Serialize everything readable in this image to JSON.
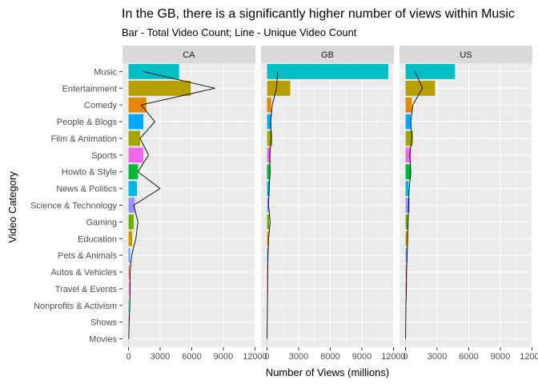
{
  "chart_data": {
    "type": "bar",
    "title": "In the GB, there is a significantly higher number of views within Music",
    "subtitle": "Bar - Total Video Count; Line - Unique Video Count",
    "xlabel": "Number of Views (millions)",
    "ylabel": "Video Category",
    "xlim": [
      0,
      12000
    ],
    "xticks": [
      0,
      3000,
      6000,
      9000,
      12000
    ],
    "xtick_labels": [
      "0",
      "3000",
      "6000",
      "9000",
      "12000"
    ],
    "grid": true,
    "legend": "none",
    "categories": [
      "Music",
      "Entertainment",
      "Comedy",
      "People & Blogs",
      "Film & Animation",
      "Sports",
      "Howto & Style",
      "News & Politics",
      "Science & Technology",
      "Gaming",
      "Education",
      "Pets & Animals",
      "Autos & Vehicles",
      "Travel & Events",
      "Nonprofits & Activism",
      "Shows",
      "Movies"
    ],
    "colors": {
      "Music": "#00BFC4",
      "Entertainment": "#B79F00",
      "Comedy": "#E58700",
      "People & Blogs": "#00A9FF",
      "Film & Animation": "#A3A500",
      "Sports": "#EF67EB",
      "Howto & Style": "#00BA38",
      "News & Politics": "#00B8E7",
      "Science & Technology": "#9590FF",
      "Gaming": "#6BB100",
      "Education": "#C99800",
      "Pets & Animals": "#619CFF",
      "Autos & Vehicles": "#F8766D",
      "Travel & Events": "#FF61C3",
      "Nonprofits & Activism": "#00C0AF",
      "Shows": "#C77CFF",
      "Movies": "#F8766D"
    },
    "panel_bg": "#EBEBEB",
    "strip_bg": "#D9D9D9",
    "panels": [
      {
        "name": "CA",
        "values": [
          4800,
          5900,
          1700,
          1400,
          1100,
          1400,
          900,
          800,
          600,
          500,
          350,
          150,
          100,
          80,
          40,
          20,
          10
        ],
        "line": [
          1400,
          8200,
          1200,
          2500,
          1100,
          1900,
          900,
          3000,
          500,
          900,
          700,
          300,
          150,
          150,
          120,
          60,
          20
        ]
      },
      {
        "name": "GB",
        "values": [
          11500,
          2200,
          400,
          400,
          500,
          350,
          250,
          250,
          150,
          200,
          150,
          100,
          80,
          60,
          40,
          20,
          10
        ],
        "line": [
          1000,
          900,
          500,
          350,
          400,
          250,
          300,
          200,
          150,
          300,
          150,
          100,
          60,
          60,
          40,
          20,
          10
        ]
      },
      {
        "name": "US",
        "values": [
          4700,
          2800,
          600,
          500,
          700,
          500,
          500,
          300,
          400,
          250,
          200,
          150,
          100,
          80,
          40,
          20,
          10
        ],
        "line": [
          900,
          1600,
          700,
          500,
          600,
          400,
          500,
          350,
          300,
          250,
          200,
          150,
          100,
          80,
          40,
          20,
          10
        ]
      }
    ]
  }
}
